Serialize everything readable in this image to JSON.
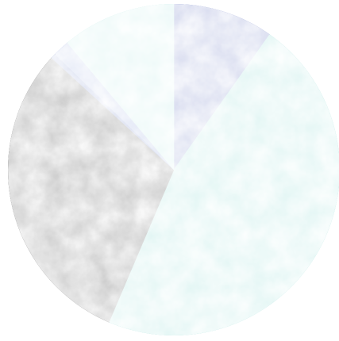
{
  "chart_data": {
    "type": "pie",
    "title": "",
    "legend": "none",
    "start_angle_deg": 0,
    "direction": "clockwise",
    "slices": [
      {
        "value": 9.8,
        "color": "#3f53b0"
      },
      {
        "value": 46.6,
        "color": "#76d1c9"
      },
      {
        "value": 30.4,
        "color": "#080808"
      },
      {
        "value": 0.5,
        "color": "#2f4cab"
      },
      {
        "value": 1.6,
        "color": "#6f89cf"
      },
      {
        "value": 11.1,
        "color": "#a4e0dc"
      }
    ]
  }
}
